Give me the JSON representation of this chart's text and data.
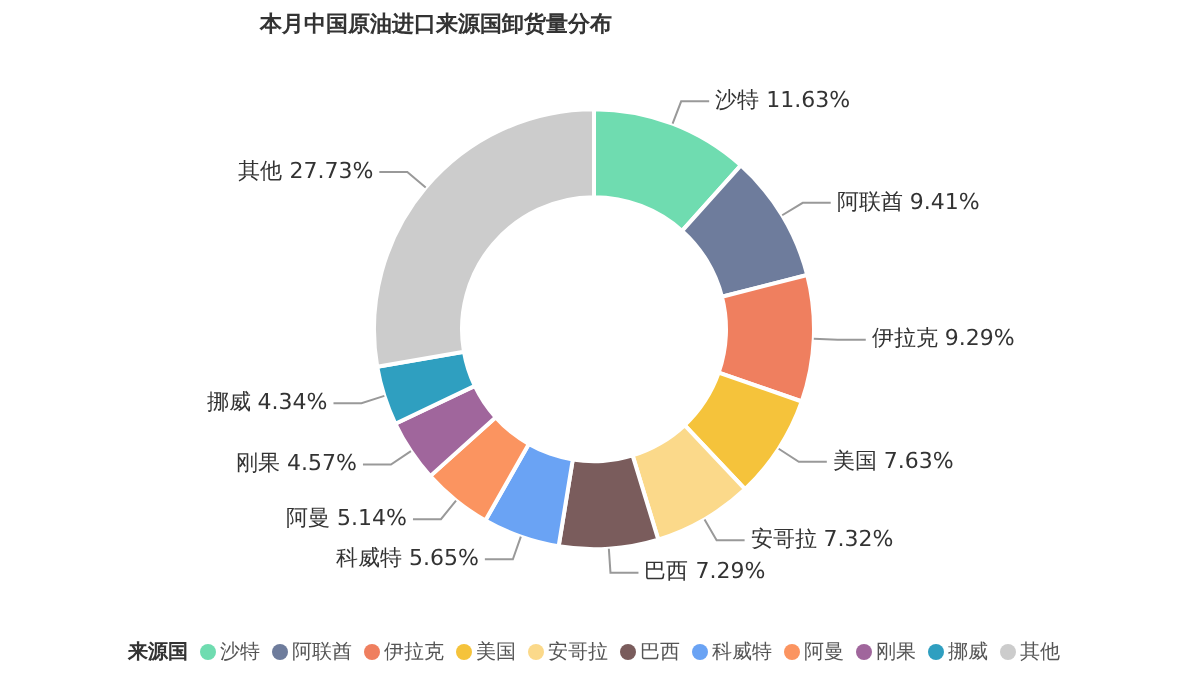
{
  "chart_data": {
    "type": "donut",
    "title": "本月中国原油进口来源国卸货量分布",
    "legend_title": "来源国",
    "legend": "bottom",
    "categories": [
      "沙特",
      "阿联酋",
      "伊拉克",
      "美国",
      "安哥拉",
      "巴西",
      "科威特",
      "阿曼",
      "刚果",
      "挪威",
      "其他"
    ],
    "values": [
      11.63,
      9.41,
      9.29,
      7.63,
      7.32,
      7.29,
      5.65,
      5.14,
      4.57,
      4.34,
      27.73
    ],
    "value_labels": [
      "11.63%",
      "9.41%",
      "9.29%",
      "7.63%",
      "7.32%",
      "7.29%",
      "5.65%",
      "5.14%",
      "4.57%",
      "4.34%",
      "27.73%"
    ],
    "colors": [
      "#6fdcb0",
      "#6e7c9c",
      "#ef7f5f",
      "#f5c33b",
      "#fbd98a",
      "#7a5c5c",
      "#6aa3f4",
      "#fb9460",
      "#a0669c",
      "#2f9fc0",
      "#cccccc"
    ]
  }
}
